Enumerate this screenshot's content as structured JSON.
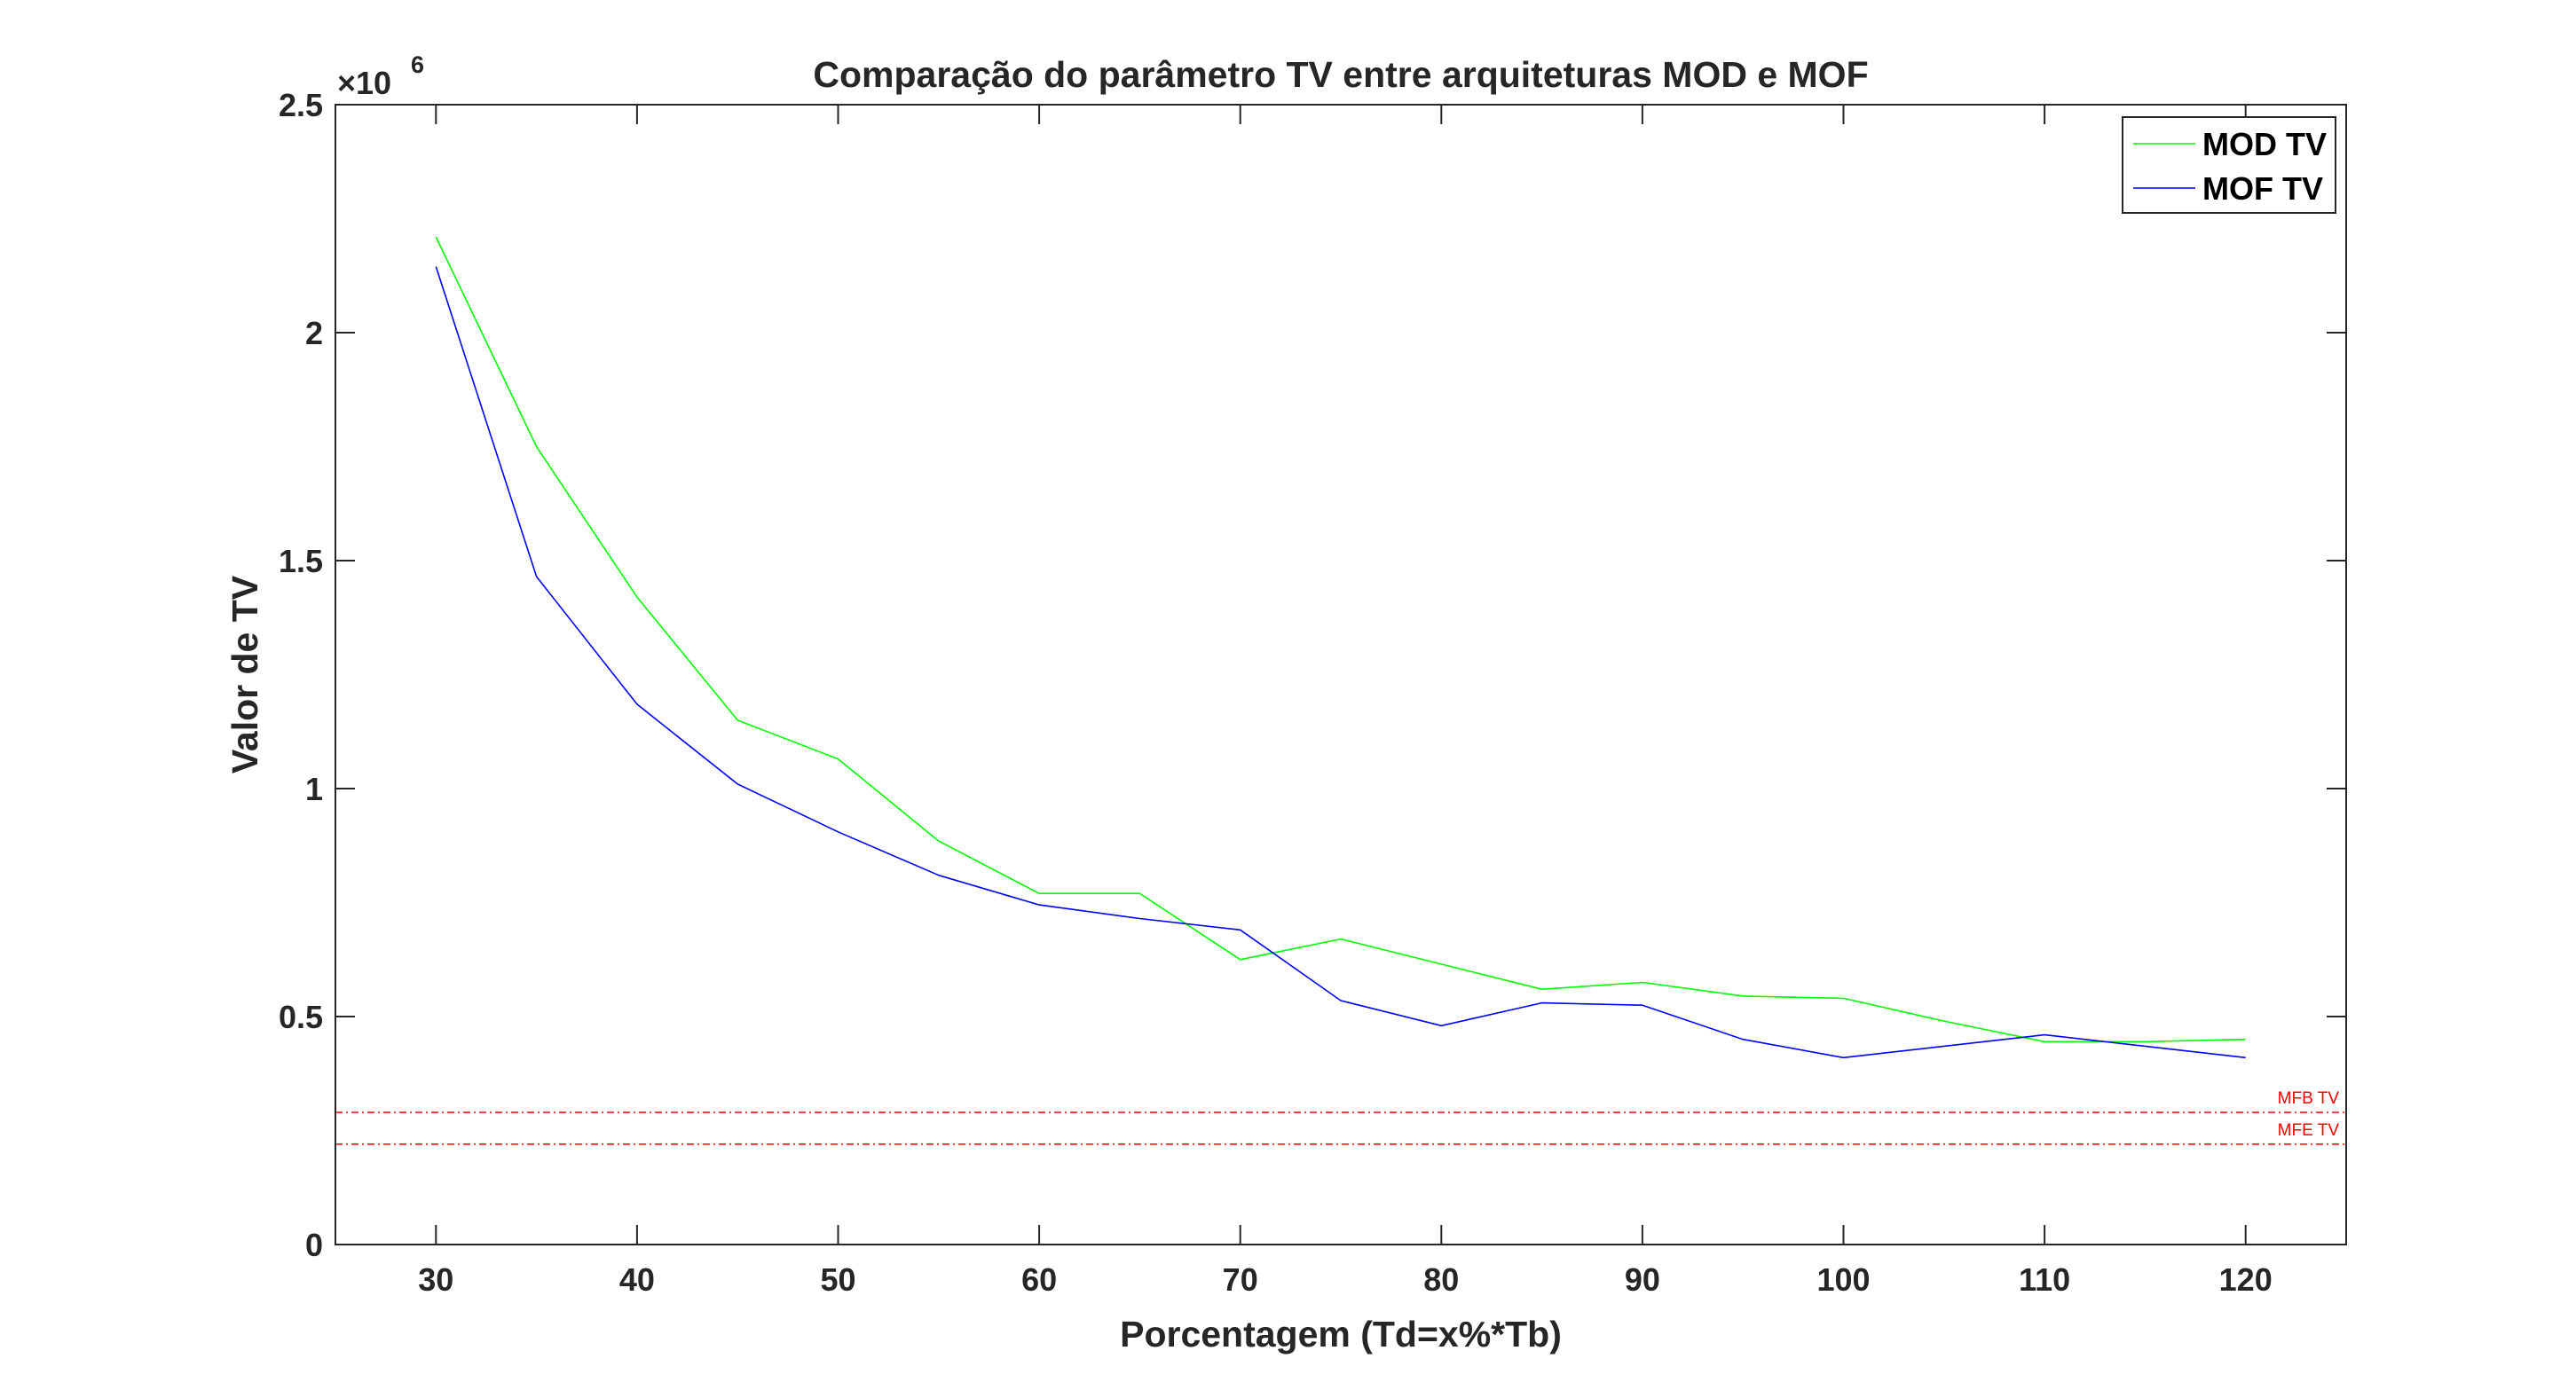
{
  "chart_data": {
    "type": "line",
    "title": "Comparação do parâmetro TV entre arquiteturas MOD e MOF",
    "xlabel": "Porcentagem (Td=x%*Tb)",
    "ylabel": "Valor de TV",
    "xlim": [
      25,
      125
    ],
    "ylim": [
      0,
      2.5
    ],
    "y_exponent_label": "×10",
    "y_exponent": "6",
    "xticks": [
      30,
      40,
      50,
      60,
      70,
      80,
      90,
      100,
      110,
      120
    ],
    "yticks": [
      0,
      0.5,
      1,
      1.5,
      2,
      2.5
    ],
    "ytick_labels": [
      "0",
      "0.5",
      "1",
      "1.5",
      "2",
      "2.5"
    ],
    "grid": false,
    "legend_position": "top-right",
    "x": [
      30,
      35,
      40,
      45,
      50,
      55,
      60,
      65,
      70,
      75,
      80,
      85,
      90,
      95,
      100,
      105,
      110,
      115,
      120
    ],
    "series": [
      {
        "name": "MOD TV",
        "color": "#00ff00",
        "values": [
          2.21,
          1.75,
          1.42,
          1.15,
          1.065,
          0.885,
          0.77,
          0.77,
          0.625,
          0.67,
          0.615,
          0.56,
          0.575,
          0.545,
          0.54,
          0.49,
          0.445,
          0.445,
          0.45
        ]
      },
      {
        "name": "MOF TV",
        "color": "#0000ff",
        "values": [
          2.145,
          1.465,
          1.185,
          1.01,
          0.905,
          0.81,
          0.745,
          0.715,
          0.69,
          0.535,
          0.48,
          0.53,
          0.525,
          0.45,
          0.41,
          0.435,
          0.46,
          0.435,
          0.41
        ]
      }
    ],
    "reference_lines": [
      {
        "name": "MFB TV",
        "value": 0.29,
        "color": "#ff0000"
      },
      {
        "name": "MFE TV",
        "value": 0.22,
        "color": "#ff0000"
      }
    ]
  }
}
